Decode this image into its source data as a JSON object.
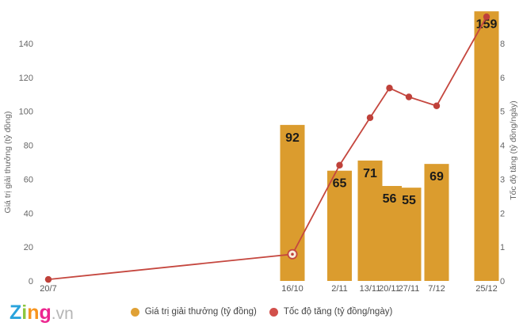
{
  "chart_data": {
    "type": "bar",
    "subtype": "combo bar + line, dual y-axes, time-scaled x-axis",
    "title": "",
    "categories": [
      "20/7",
      "16/10",
      "2/11",
      "13/11",
      "20/11",
      "27/11",
      "7/12",
      "25/12"
    ],
    "x_day_offsets": [
      0,
      88,
      105,
      116,
      123,
      130,
      140,
      158
    ],
    "series": [
      {
        "name": "Giá trị giải thưởng (tỷ đồng)",
        "type": "bar",
        "yaxis": "left",
        "color": "#db9c2e",
        "values": [
          null,
          92,
          65,
          71,
          56,
          55,
          69,
          159
        ],
        "data_labels": true
      },
      {
        "name": "Tốc độ tăng (tỷ đồng/ngày)",
        "type": "line",
        "yaxis": "right",
        "color": "#c5473f",
        "marker_color": "#bf413a",
        "values": [
          0.05,
          0.9,
          3.9,
          5.5,
          6.5,
          6.2,
          5.9,
          8.9
        ],
        "highlighted_point_index": 1
      }
    ],
    "yaxis_left": {
      "title": "Giá trị giải thưởng (tỷ đồng)",
      "ticks": [
        0,
        20,
        40,
        60,
        80,
        100,
        120,
        140
      ],
      "range": [
        0,
        161
      ]
    },
    "yaxis_right": {
      "title": "Tốc độ tăng (tỷ đồng/ngày)",
      "tick_labels": [
        "0",
        "1",
        "2",
        "3",
        "4",
        "5",
        "6",
        "8"
      ],
      "range": [
        0,
        8.6
      ]
    },
    "grid": false,
    "legend_position": "bottom-center"
  },
  "legend": {
    "items": [
      {
        "label": "Giá trị giải thưởng (tỷ đồng)",
        "color": "#e0a135"
      },
      {
        "label": "Tốc độ tăng (tỷ đồng/ngày)",
        "color": "#d2504b"
      }
    ]
  },
  "branding": {
    "letters": [
      {
        "ch": "Z",
        "color": "#2aa3dc"
      },
      {
        "ch": "i",
        "color": "#8dc63f"
      },
      {
        "ch": "n",
        "color": "#f7941e"
      },
      {
        "ch": "g",
        "color": "#ec268f"
      }
    ],
    "suffix": ".vn",
    "suffix_color": "#b5b5b5"
  },
  "colors": {
    "axis_text": "#666666",
    "x_label_text": "#555555",
    "bar_label_text": "#1a1a1a"
  }
}
